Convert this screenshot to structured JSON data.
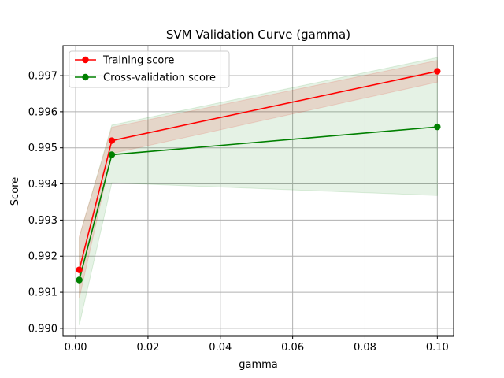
{
  "chart_data": {
    "type": "line",
    "title": "SVM Validation Curve (gamma)",
    "xlabel": "gamma",
    "ylabel": "Score",
    "xlim": [
      -0.0035,
      0.1045
    ],
    "ylim": [
      0.98978,
      0.99783
    ],
    "x_ticks": [
      0.0,
      0.02,
      0.04,
      0.06,
      0.08,
      0.1
    ],
    "x_tick_labels": [
      "0.00",
      "0.02",
      "0.04",
      "0.06",
      "0.08",
      "0.10"
    ],
    "y_ticks": [
      0.99,
      0.991,
      0.992,
      0.993,
      0.994,
      0.995,
      0.996,
      0.997
    ],
    "y_tick_labels": [
      "0.990",
      "0.991",
      "0.992",
      "0.993",
      "0.994",
      "0.995",
      "0.996",
      "0.997"
    ],
    "grid": true,
    "legend_position": "top-left",
    "x": [
      0.001,
      0.01,
      0.1
    ],
    "series": [
      {
        "name": "Training score",
        "color": "#ff0000",
        "values": [
          0.99162,
          0.9952,
          0.99712
        ],
        "lower": [
          0.99083,
          0.99484,
          0.99682
        ],
        "upper": [
          0.99255,
          0.99557,
          0.99742
        ]
      },
      {
        "name": "Cross-validation score",
        "color": "#008000",
        "values": [
          0.99134,
          0.99481,
          0.99558
        ],
        "lower": [
          0.99009,
          0.99403,
          0.99368
        ],
        "upper": [
          0.99252,
          0.99563,
          0.9975
        ]
      }
    ]
  }
}
